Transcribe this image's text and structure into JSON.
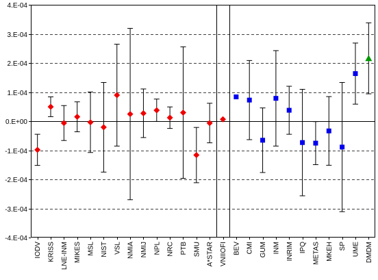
{
  "chart_data": {
    "type": "scatter",
    "title": "",
    "xlabel": "",
    "ylabel": "",
    "ylim": [
      -0.0004,
      0.0004
    ],
    "y_ticks": [
      0.0004,
      0.0003,
      0.0002,
      0.0001,
      0.0,
      -0.0001,
      -0.0002,
      -0.0003,
      -0.0004
    ],
    "y_tick_labels": [
      "4.E-04",
      "3.E-04",
      "2.E-04",
      "1.E-04",
      "0.E+00",
      "-1.E-04",
      "-2.E-04",
      "-3.E-04",
      "-4.E-04"
    ],
    "grid": "horizontal dashed",
    "separators_after": [
      "A*STAR",
      "VNIIOFI"
    ],
    "categories": [
      "IODV",
      "KRISS",
      "LNE-INM",
      "MIKES",
      "MSL",
      "NIST",
      "VSL",
      "NMIA",
      "NMIJ",
      "NPL",
      "NRC",
      "PTB",
      "SMU",
      "A*STAR",
      "VNIIOFI",
      "BEV",
      "CMI",
      "GUM",
      "INM",
      "INRIM",
      "IPQ",
      "METAS",
      "MKEH",
      "SP",
      "UME",
      "DMDM"
    ],
    "series": [
      {
        "marker": "diamond",
        "color": "#ee0000",
        "points": [
          {
            "x": "IODV",
            "y": -9.85e-05,
            "err": 5.35e-05
          },
          {
            "x": "KRISS",
            "y": 4.95e-05,
            "err": 3.4e-05
          },
          {
            "x": "LNE-INM",
            "y": -6.4e-06,
            "err": 6e-05
          },
          {
            "x": "MIKES",
            "y": 1.5e-05,
            "err": 5.15e-05
          },
          {
            "x": "MSL",
            "y": -3.7e-06,
            "err": 0.000104
          },
          {
            "x": "NIST",
            "y": -2.1e-05,
            "err": 0.000154
          },
          {
            "x": "VSL",
            "y": 8.95e-05,
            "err": 0.000175
          },
          {
            "x": "NMIA",
            "y": 2.45e-05,
            "err": 0.0002945
          },
          {
            "x": "NMIJ",
            "y": 2.72e-05,
            "err": 8.35e-05
          },
          {
            "x": "NPL",
            "y": 3.75e-05,
            "err": 3.85e-05
          },
          {
            "x": "NRC",
            "y": 1.2e-05,
            "err": 3.7e-05
          },
          {
            "x": "PTB",
            "y": 2.95e-05,
            "err": 0.000226
          },
          {
            "x": "SMU",
            "y": -0.0001165,
            "err": 9.5e-05
          },
          {
            "x": "A*STAR",
            "y": -6.4e-06,
            "err": 6.8e-05
          },
          {
            "x": "VNIIOFI",
            "y": 6.4e-06,
            "err": 0.0
          }
        ]
      },
      {
        "marker": "square",
        "color": "#0000ee",
        "points": [
          {
            "x": "BEV",
            "y": 8.35e-05,
            "err": 0.0
          },
          {
            "x": "CMI",
            "y": 7.25e-05,
            "err": 0.000136
          },
          {
            "x": "GUM",
            "y": -6.55e-05,
            "err": 0.000111
          },
          {
            "x": "INM",
            "y": 7.85e-05,
            "err": 0.000164
          },
          {
            "x": "INRIM",
            "y": 3.75e-05,
            "err": 8.25e-05
          },
          {
            "x": "IPQ",
            "y": -7.35e-05,
            "err": 0.000183
          },
          {
            "x": "METAS",
            "y": -7.55e-05,
            "err": 7.4e-05
          },
          {
            "x": "MKEH",
            "y": -3.35e-05,
            "err": 0.000118
          },
          {
            "x": "SP",
            "y": -8.9e-05,
            "err": 0.000222
          },
          {
            "x": "UME",
            "y": 0.0001635,
            "err": 0.000105
          }
        ]
      },
      {
        "marker": "triangle",
        "color": "#009900",
        "points": [
          {
            "x": "DMDM",
            "y": 0.000216,
            "err": 0.000122
          }
        ]
      }
    ]
  }
}
